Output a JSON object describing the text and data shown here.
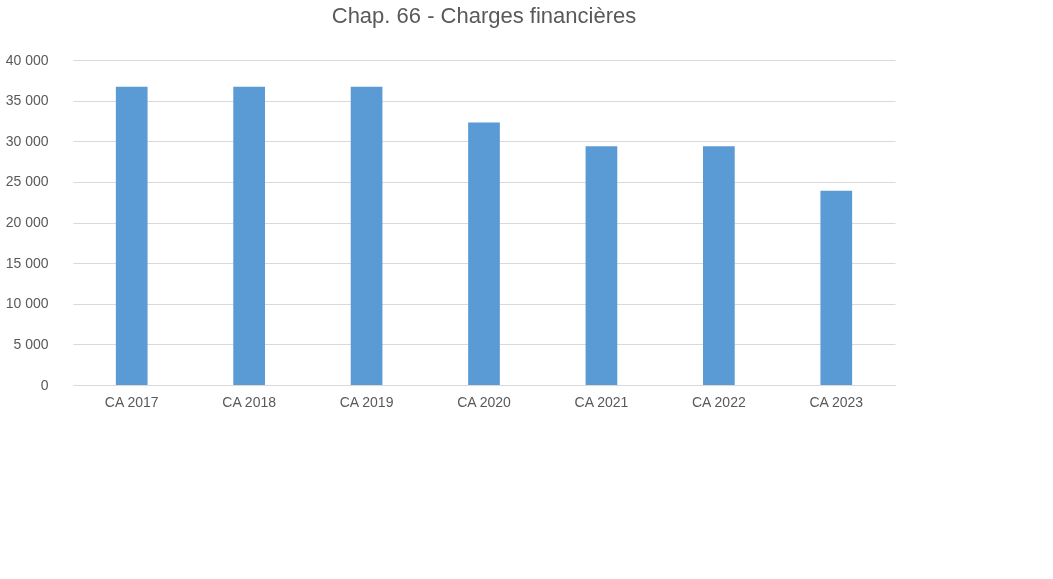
{
  "chart_data": {
    "type": "bar",
    "title": "Chap. 66 - Charges financières",
    "categories": [
      "CA 2017",
      "CA 2018",
      "CA 2019",
      "CA 2020",
      "CA 2021",
      "CA 2022",
      "CA 2023"
    ],
    "values": [
      36700,
      36700,
      36700,
      32300,
      29400,
      29400,
      23900
    ],
    "color": "#5b9bd5",
    "ylim": [
      0,
      40000
    ],
    "yticks": [
      {
        "value": 0,
        "label": "0"
      },
      {
        "value": 5000,
        "label": "5 000"
      },
      {
        "value": 10000,
        "label": "10 000"
      },
      {
        "value": 15000,
        "label": "15 000"
      },
      {
        "value": 20000,
        "label": "20 000"
      },
      {
        "value": 25000,
        "label": "25 000"
      },
      {
        "value": 30000,
        "label": "30 000"
      },
      {
        "value": 35000,
        "label": "35 000"
      },
      {
        "value": 40000,
        "label": "40 000"
      }
    ],
    "grid": "y"
  }
}
